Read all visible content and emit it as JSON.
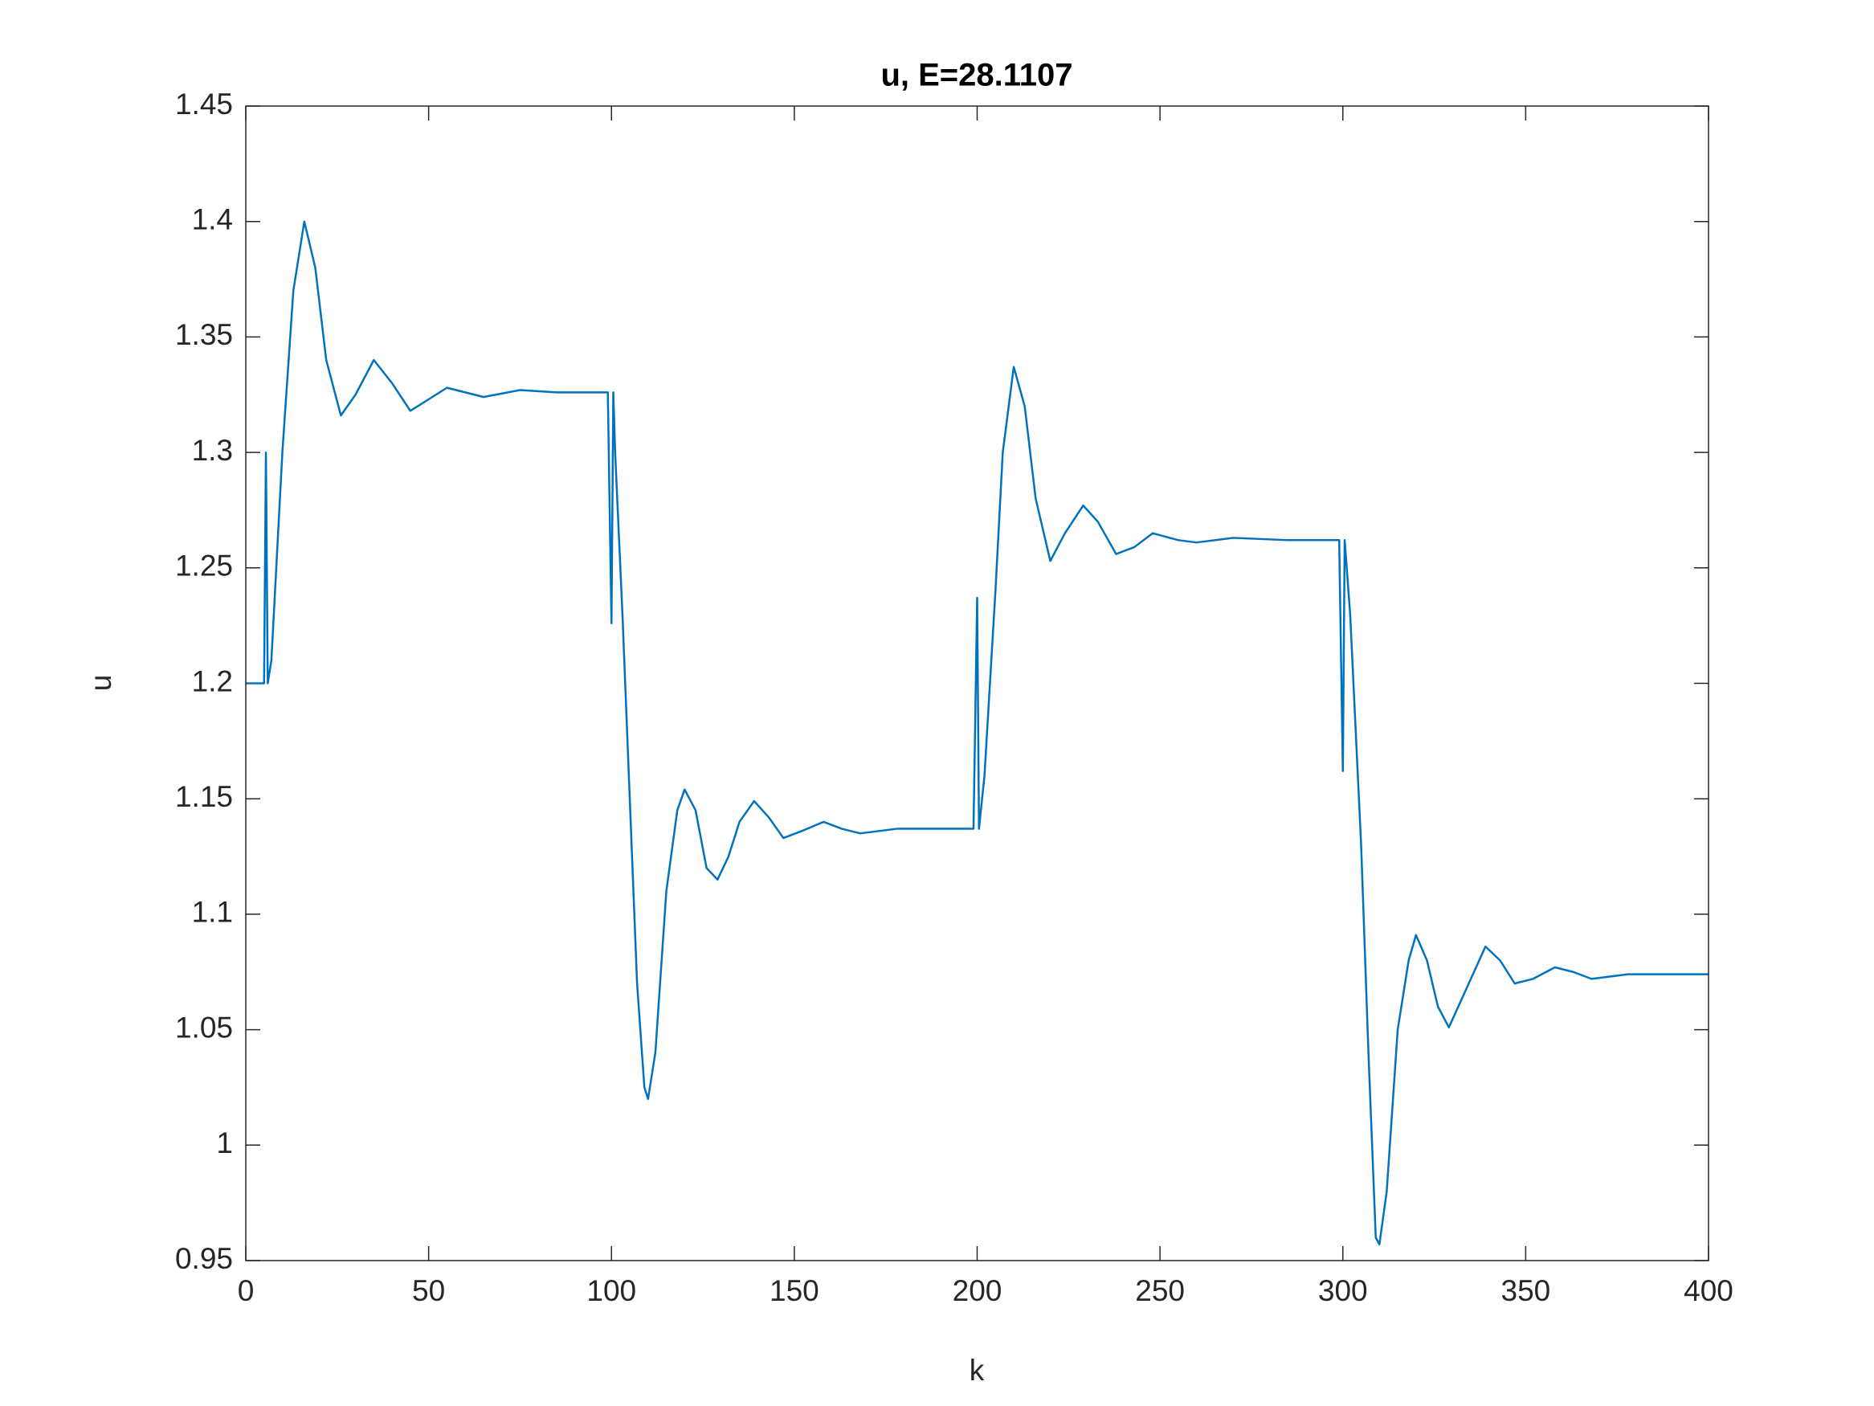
{
  "chart_data": {
    "type": "line",
    "title": "u, E=28.1107",
    "xlabel": "k",
    "ylabel": "u",
    "xlim": [
      0,
      400
    ],
    "ylim": [
      0.95,
      1.45
    ],
    "xticks": [
      0,
      50,
      100,
      150,
      200,
      250,
      300,
      350,
      400
    ],
    "yticks": [
      0.95,
      1,
      1.05,
      1.1,
      1.15,
      1.2,
      1.25,
      1.3,
      1.35,
      1.4,
      1.45
    ],
    "grid": false,
    "x": [
      0,
      5,
      5.5,
      6,
      7,
      10,
      13,
      16,
      19,
      22,
      26,
      30,
      35,
      40,
      45,
      50,
      55,
      60,
      65,
      75,
      85,
      99,
      100,
      100.5,
      101,
      103,
      105,
      107,
      109,
      110,
      112,
      115,
      118,
      120,
      123,
      126,
      129,
      132,
      135,
      139,
      143,
      147,
      152,
      158,
      163,
      168,
      178,
      190,
      199,
      200,
      200.5,
      202,
      205,
      207,
      210,
      213,
      216,
      220,
      224,
      229,
      233,
      238,
      243,
      248,
      255,
      260,
      270,
      285,
      299,
      300,
      300.5,
      302,
      305,
      307,
      309,
      310,
      312,
      315,
      318,
      320,
      323,
      326,
      329,
      333,
      339,
      343,
      347,
      352,
      358,
      363,
      368,
      378,
      400
    ],
    "series": [
      {
        "name": "u",
        "color": "#0072BD",
        "values": [
          1.2,
          1.2,
          1.3,
          1.2,
          1.21,
          1.3,
          1.37,
          1.4,
          1.38,
          1.34,
          1.316,
          1.325,
          1.34,
          1.33,
          1.318,
          1.323,
          1.328,
          1.326,
          1.324,
          1.327,
          1.326,
          1.326,
          1.226,
          1.326,
          1.3,
          1.23,
          1.15,
          1.07,
          1.025,
          1.02,
          1.04,
          1.11,
          1.145,
          1.154,
          1.145,
          1.12,
          1.115,
          1.125,
          1.14,
          1.149,
          1.142,
          1.133,
          1.136,
          1.14,
          1.137,
          1.135,
          1.137,
          1.137,
          1.137,
          1.237,
          1.137,
          1.16,
          1.24,
          1.3,
          1.337,
          1.32,
          1.28,
          1.253,
          1.265,
          1.277,
          1.27,
          1.256,
          1.259,
          1.265,
          1.262,
          1.261,
          1.263,
          1.262,
          1.262,
          1.162,
          1.262,
          1.23,
          1.13,
          1.04,
          0.96,
          0.957,
          0.98,
          1.05,
          1.08,
          1.091,
          1.08,
          1.06,
          1.051,
          1.065,
          1.086,
          1.08,
          1.07,
          1.072,
          1.077,
          1.075,
          1.072,
          1.074,
          1.074
        ]
      }
    ]
  }
}
